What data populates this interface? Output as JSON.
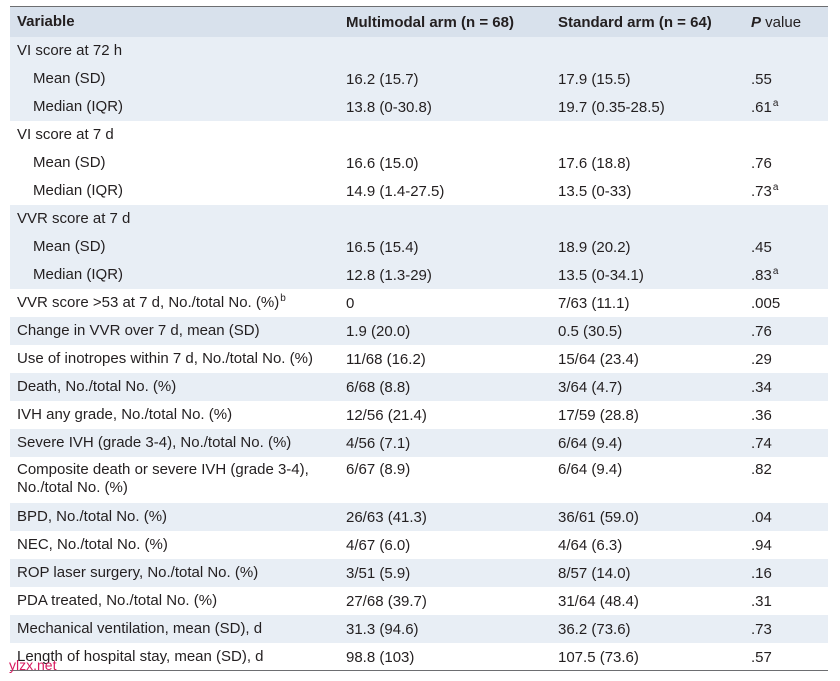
{
  "header": {
    "variable": "Variable",
    "multimodal": "Multimodal arm (n = 68)",
    "standard": "Standard arm (n = 64)",
    "p_value_italic": "P",
    "p_value_rest": " value"
  },
  "rows": [
    {
      "label": "VI score at 72 h",
      "a": "",
      "b": "",
      "p": "",
      "sup_label": "",
      "sup_p": ""
    },
    {
      "label": "Mean (SD)",
      "a": "16.2 (15.7)",
      "b": "17.9 (15.5)",
      "p": ".55",
      "sup_label": "",
      "sup_p": ""
    },
    {
      "label": "Median (IQR)",
      "a": "13.8 (0-30.8)",
      "b": "19.7 (0.35-28.5)",
      "p": ".61",
      "sup_label": "",
      "sup_p": "a"
    },
    {
      "label": "VI score at 7 d",
      "a": "",
      "b": "",
      "p": "",
      "sup_label": "",
      "sup_p": ""
    },
    {
      "label": "Mean (SD)",
      "a": "16.6 (15.0)",
      "b": "17.6 (18.8)",
      "p": ".76",
      "sup_label": "",
      "sup_p": ""
    },
    {
      "label": "Median (IQR)",
      "a": "14.9 (1.4-27.5)",
      "b": "13.5 (0-33)",
      "p": ".73",
      "sup_label": "",
      "sup_p": "a"
    },
    {
      "label": "VVR score at 7 d",
      "a": "",
      "b": "",
      "p": "",
      "sup_label": "",
      "sup_p": ""
    },
    {
      "label": "Mean (SD)",
      "a": "16.5 (15.4)",
      "b": "18.9 (20.2)",
      "p": ".45",
      "sup_label": "",
      "sup_p": ""
    },
    {
      "label": "Median (IQR)",
      "a": "12.8 (1.3-29)",
      "b": "13.5 (0-34.1)",
      "p": ".83",
      "sup_label": "",
      "sup_p": "a"
    },
    {
      "label": "VVR score >53 at 7 d, No./total No. (%)",
      "a": "0",
      "b": "7/63 (11.1)",
      "p": ".005",
      "sup_label": "b",
      "sup_p": ""
    },
    {
      "label": "Change in VVR over 7 d, mean (SD)",
      "a": "1.9 (20.0)",
      "b": "0.5 (30.5)",
      "p": ".76",
      "sup_label": "",
      "sup_p": ""
    },
    {
      "label": "Use of inotropes within 7 d, No./total No. (%)",
      "a": "11/68 (16.2)",
      "b": "15/64 (23.4)",
      "p": ".29",
      "sup_label": "",
      "sup_p": ""
    },
    {
      "label": "Death, No./total No. (%)",
      "a": "6/68 (8.8)",
      "b": "3/64 (4.7)",
      "p": ".34",
      "sup_label": "",
      "sup_p": ""
    },
    {
      "label": "IVH any grade, No./total No. (%)",
      "a": "12/56 (21.4)",
      "b": "17/59 (28.8)",
      "p": ".36",
      "sup_label": "",
      "sup_p": ""
    },
    {
      "label": "Severe IVH (grade 3-4), No./total No. (%)",
      "a": "4/56 (7.1)",
      "b": "6/64 (9.4)",
      "p": ".74",
      "sup_label": "",
      "sup_p": ""
    },
    {
      "label": "Composite death or severe IVH (grade 3-4), No./total No. (%)",
      "a": "6/67 (8.9)",
      "b": "6/64 (9.4)",
      "p": ".82",
      "sup_label": "",
      "sup_p": ""
    },
    {
      "label": "BPD, No./total No. (%)",
      "a": "26/63 (41.3)",
      "b": "36/61 (59.0)",
      "p": ".04",
      "sup_label": "",
      "sup_p": ""
    },
    {
      "label": "NEC, No./total No. (%)",
      "a": "4/67 (6.0)",
      "b": "4/64 (6.3)",
      "p": ".94",
      "sup_label": "",
      "sup_p": ""
    },
    {
      "label": "ROP laser surgery, No./total No. (%)",
      "a": "3/51 (5.9)",
      "b": "8/57 (14.0)",
      "p": ".16",
      "sup_label": "",
      "sup_p": ""
    },
    {
      "label": "PDA treated, No./total No. (%)",
      "a": "27/68 (39.7)",
      "b": "31/64 (48.4)",
      "p": ".31",
      "sup_label": "",
      "sup_p": ""
    },
    {
      "label": "Mechanical ventilation, mean (SD), d",
      "a": "31.3 (94.6)",
      "b": "36.2 (73.6)",
      "p": ".73",
      "sup_label": "",
      "sup_p": ""
    },
    {
      "label": "Length of hospital stay, mean (SD), d",
      "a": "98.8 (103)",
      "b": "107.5 (73.6)",
      "p": ".57",
      "sup_label": "",
      "sup_p": ""
    }
  ],
  "watermark": "ylzx.net"
}
